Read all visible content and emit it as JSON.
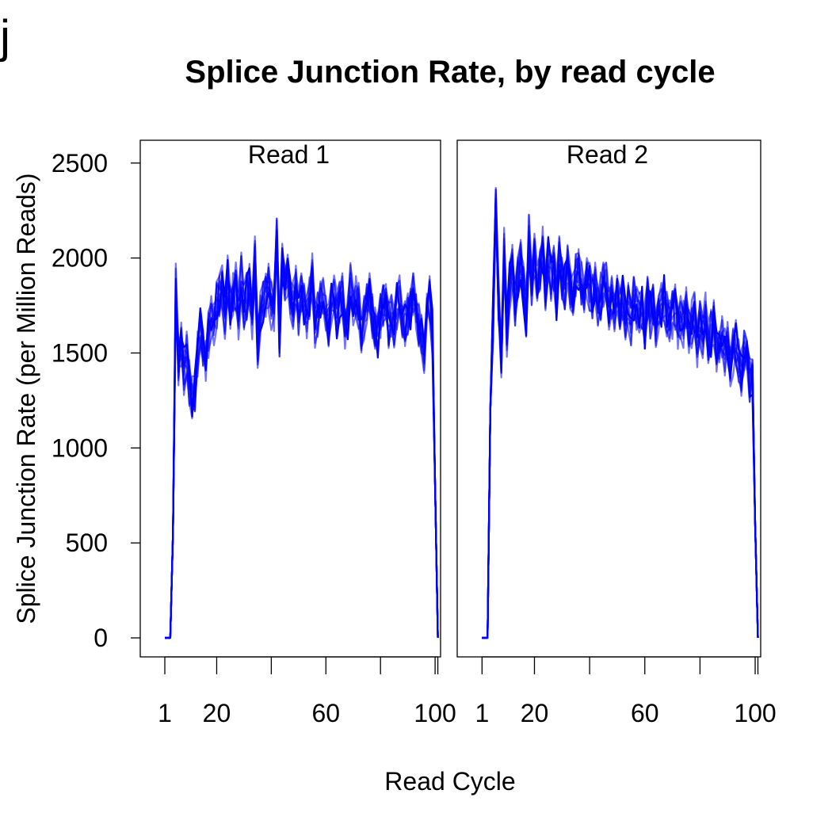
{
  "figure_letter": "j",
  "chart_data": {
    "type": "line",
    "title": "Splice Junction Rate, by read cycle",
    "xlabel": "Read Cycle",
    "ylabel": "Splice Junction Rate (per Million Reads)",
    "ylim": [
      -100,
      2620
    ],
    "yticks": [
      0,
      500,
      1000,
      1500,
      2000,
      2500
    ],
    "ytick_labels": [
      "0",
      "500",
      "1000",
      "1500",
      "2000",
      "2500"
    ],
    "line_color": "#0000ff",
    "grid": false,
    "legend": "none",
    "panels": [
      {
        "name": "Read 1",
        "xlim": [
          -8,
          102
        ],
        "xticks": [
          1,
          20,
          40,
          60,
          80,
          100,
          101
        ],
        "xtick_labels": [
          {
            "value": 1,
            "label": "1"
          },
          {
            "value": 20,
            "label": "20"
          },
          {
            "value": 60,
            "label": "60"
          },
          {
            "value": 100,
            "label": "100"
          }
        ],
        "n_series": 12,
        "x": [
          1,
          2,
          3,
          4,
          5,
          6,
          7,
          8,
          9,
          10,
          11,
          12,
          13,
          14,
          15,
          16,
          17,
          18,
          19,
          20,
          21,
          22,
          23,
          24,
          25,
          26,
          27,
          28,
          29,
          30,
          31,
          32,
          33,
          34,
          35,
          36,
          37,
          38,
          39,
          40,
          41,
          42,
          43,
          44,
          45,
          46,
          47,
          48,
          49,
          50,
          51,
          52,
          53,
          54,
          55,
          56,
          57,
          58,
          59,
          60,
          61,
          62,
          63,
          64,
          65,
          66,
          67,
          68,
          69,
          70,
          71,
          72,
          73,
          74,
          75,
          76,
          77,
          78,
          79,
          80,
          81,
          82,
          83,
          84,
          85,
          86,
          87,
          88,
          89,
          90,
          91,
          92,
          93,
          94,
          95,
          96,
          97,
          98,
          99,
          100,
          101
        ],
        "values": [
          0,
          0,
          0,
          550,
          1850,
          1450,
          1550,
          1400,
          1500,
          1350,
          1250,
          1300,
          1500,
          1650,
          1550,
          1450,
          1600,
          1700,
          1650,
          1750,
          1800,
          1850,
          1700,
          1900,
          1750,
          1800,
          1850,
          1700,
          1900,
          1750,
          1800,
          1850,
          1700,
          2000,
          1550,
          1700,
          1750,
          1800,
          1850,
          1750,
          1700,
          2150,
          1600,
          1950,
          1850,
          1900,
          1800,
          1750,
          1850,
          1700,
          1800,
          1750,
          1700,
          1800,
          1900,
          1650,
          1700,
          1750,
          1800,
          1700,
          1650,
          1750,
          1800,
          1700,
          1750,
          1800,
          1650,
          1700,
          1850,
          1750,
          1800,
          1750,
          1600,
          1700,
          1750,
          1800,
          1700,
          1650,
          1600,
          1700,
          1750,
          1800,
          1650,
          1700,
          1600,
          1750,
          1800,
          1700,
          1650,
          1700,
          1750,
          1800,
          1700,
          1650,
          1600,
          1500,
          1750,
          1800,
          1600,
          800,
          0
        ]
      },
      {
        "name": "Read 2",
        "xlim": [
          -8,
          102
        ],
        "xticks": [
          1,
          20,
          40,
          60,
          80,
          100,
          101
        ],
        "xtick_labels": [
          {
            "value": 1,
            "label": "1"
          },
          {
            "value": 20,
            "label": "20"
          },
          {
            "value": 60,
            "label": "60"
          },
          {
            "value": 100,
            "label": "100"
          }
        ],
        "n_series": 12,
        "x": [
          1,
          2,
          3,
          4,
          5,
          6,
          7,
          8,
          9,
          10,
          11,
          12,
          13,
          14,
          15,
          16,
          17,
          18,
          19,
          20,
          21,
          22,
          23,
          24,
          25,
          26,
          27,
          28,
          29,
          30,
          31,
          32,
          33,
          34,
          35,
          36,
          37,
          38,
          39,
          40,
          41,
          42,
          43,
          44,
          45,
          46,
          47,
          48,
          49,
          50,
          51,
          52,
          53,
          54,
          55,
          56,
          57,
          58,
          59,
          60,
          61,
          62,
          63,
          64,
          65,
          66,
          67,
          68,
          69,
          70,
          71,
          72,
          73,
          74,
          75,
          76,
          77,
          78,
          79,
          80,
          81,
          82,
          83,
          84,
          85,
          86,
          87,
          88,
          89,
          90,
          91,
          92,
          93,
          94,
          95,
          96,
          97,
          98,
          99,
          100,
          101
        ],
        "values": [
          0,
          0,
          0,
          1200,
          1700,
          2350,
          1800,
          1500,
          2050,
          1600,
          1850,
          1950,
          1750,
          1900,
          2000,
          1850,
          1700,
          2100,
          1850,
          2000,
          1900,
          1950,
          2050,
          1850,
          2000,
          1900,
          1950,
          1800,
          2000,
          1900,
          1850,
          1950,
          1850,
          1800,
          1900,
          1950,
          1850,
          1800,
          1900,
          1850,
          1800,
          1850,
          1750,
          1800,
          1850,
          1900,
          1750,
          1800,
          1700,
          1850,
          1750,
          1800,
          1700,
          1750,
          1650,
          1800,
          1750,
          1700,
          1750,
          1650,
          1800,
          1700,
          1750,
          1650,
          1700,
          1750,
          1800,
          1700,
          1650,
          1700,
          1750,
          1600,
          1700,
          1650,
          1750,
          1600,
          1650,
          1700,
          1550,
          1650,
          1600,
          1700,
          1550,
          1600,
          1650,
          1500,
          1550,
          1600,
          1500,
          1550,
          1450,
          1500,
          1550,
          1450,
          1400,
          1500,
          1450,
          1350,
          1400,
          600,
          0
        ]
      }
    ]
  }
}
